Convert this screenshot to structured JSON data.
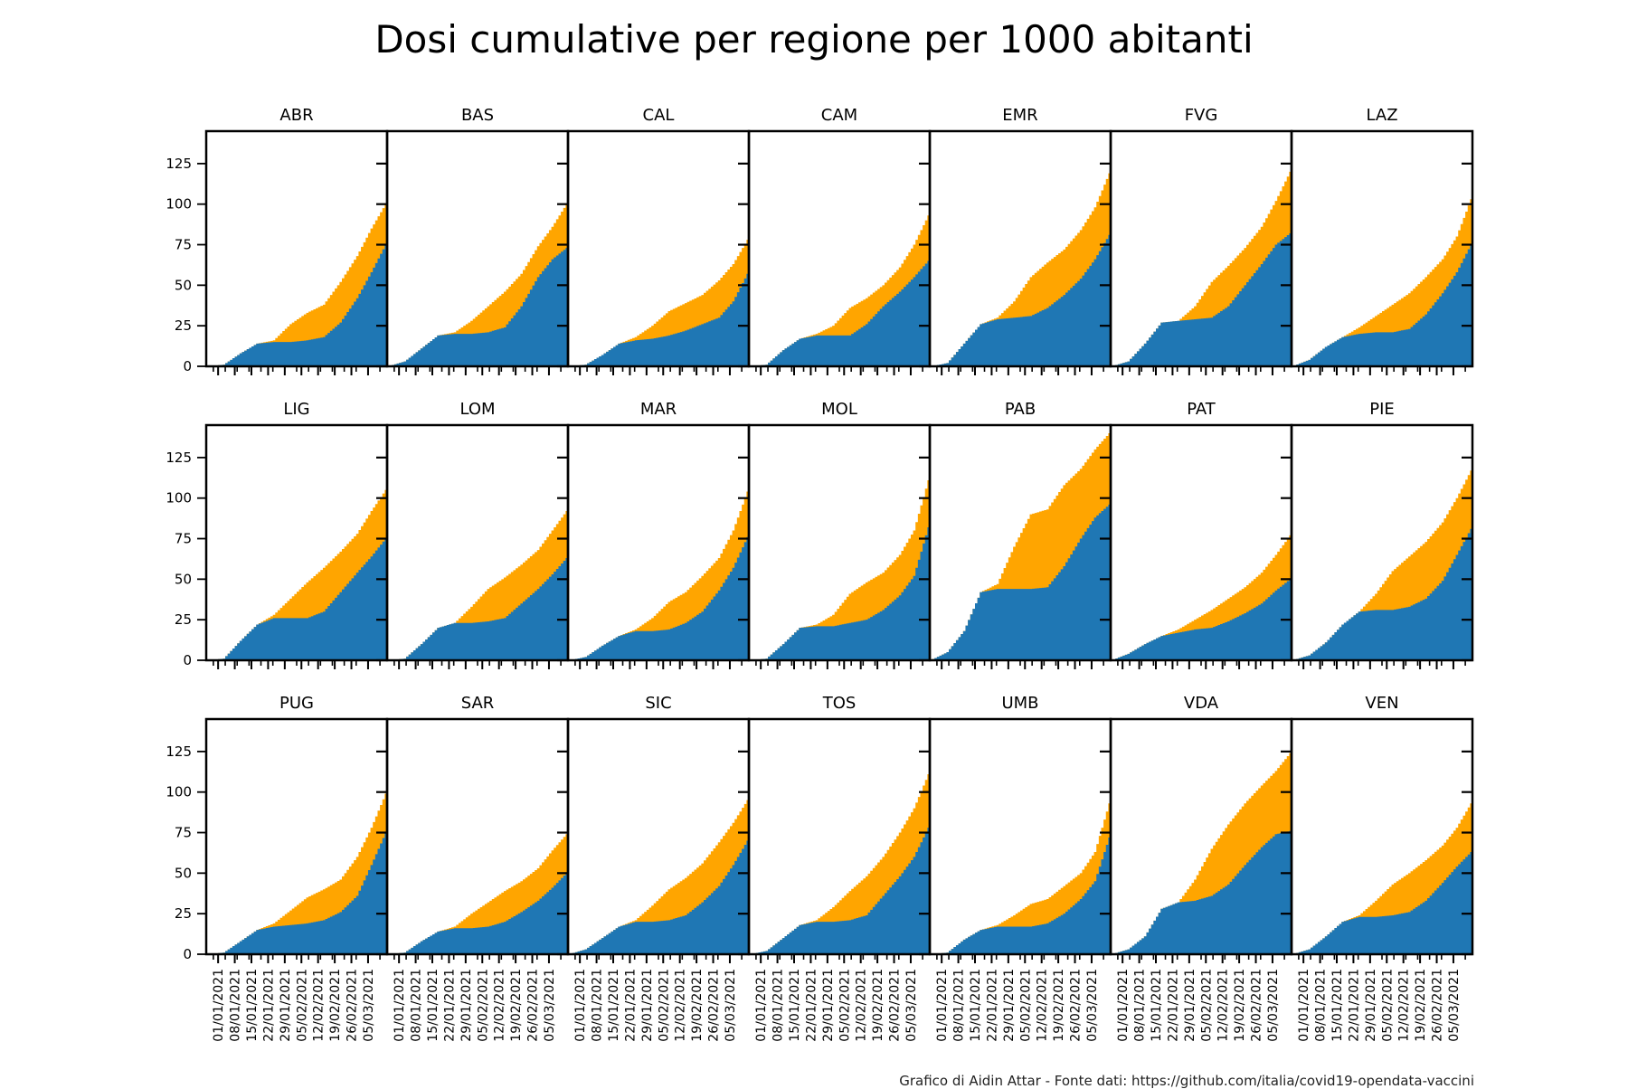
{
  "title": "Dosi cumulative per regione per 1000 abitanti",
  "caption": "Grafico di Aidin Attar - Fonte dati: https://github.com/italia/covid19-opendata-vaccini",
  "colors": {
    "total": "#ffa500",
    "first": "#1f77b4"
  },
  "chart_data": {
    "type": "area",
    "layout": {
      "rows": 3,
      "cols": 7,
      "shared_axes": true,
      "step": true
    },
    "y_ticks": [
      0,
      25,
      50,
      75,
      100,
      125
    ],
    "ylim": [
      0,
      145
    ],
    "x_ticks": [
      "01/01/2021",
      "08/01/2021",
      "15/01/2021",
      "22/01/2021",
      "29/01/2021",
      "05/02/2021",
      "12/02/2021",
      "19/02/2021",
      "26/02/2021",
      "05/03/2021"
    ],
    "x_range": [
      "2020-12-27",
      "2021-03-13"
    ],
    "series_keys": [
      "total",
      "first"
    ],
    "knot_dates": [
      "2020-12-27",
      "2021-01-03",
      "2021-01-10",
      "2021-01-17",
      "2021-01-24",
      "2021-01-31",
      "2021-02-07",
      "2021-02-14",
      "2021-02-21",
      "2021-02-28",
      "2021-03-06",
      "2021-03-12"
    ],
    "panels": [
      {
        "label": "ABR",
        "total": [
          0,
          1,
          8,
          14,
          16,
          26,
          33,
          38,
          52,
          68,
          85,
          100
        ],
        "first": [
          0,
          1,
          8,
          14,
          15,
          15,
          16,
          18,
          27,
          42,
          58,
          75
        ]
      },
      {
        "label": "BAS",
        "total": [
          0,
          3,
          11,
          19,
          21,
          28,
          37,
          46,
          57,
          74,
          86,
          100
        ],
        "first": [
          0,
          3,
          11,
          19,
          20,
          20,
          21,
          24,
          37,
          55,
          66,
          73
        ]
      },
      {
        "label": "CAL",
        "total": [
          0,
          1,
          7,
          14,
          18,
          25,
          34,
          39,
          44,
          53,
          63,
          78
        ],
        "first": [
          0,
          1,
          7,
          14,
          16,
          17,
          19,
          22,
          26,
          30,
          40,
          57
        ]
      },
      {
        "label": "CAM",
        "total": [
          0,
          1,
          10,
          17,
          20,
          25,
          36,
          42,
          50,
          61,
          75,
          93
        ],
        "first": [
          0,
          1,
          10,
          17,
          19,
          19,
          19,
          26,
          37,
          46,
          55,
          65
        ]
      },
      {
        "label": "EMR",
        "total": [
          0,
          2,
          14,
          26,
          30,
          40,
          55,
          64,
          72,
          84,
          98,
          119
        ],
        "first": [
          0,
          2,
          14,
          26,
          29,
          30,
          31,
          36,
          44,
          54,
          66,
          81
        ]
      },
      {
        "label": "FVG",
        "total": [
          0,
          3,
          14,
          27,
          28,
          37,
          52,
          62,
          73,
          86,
          102,
          120
        ],
        "first": [
          0,
          3,
          14,
          27,
          28,
          29,
          30,
          37,
          50,
          63,
          75,
          82
        ]
      },
      {
        "label": "LAZ",
        "total": [
          0,
          4,
          12,
          18,
          24,
          31,
          38,
          45,
          55,
          66,
          80,
          103
        ],
        "first": [
          0,
          4,
          12,
          18,
          20,
          21,
          21,
          23,
          32,
          45,
          58,
          75
        ]
      },
      {
        "label": "LIG",
        "total": [
          0,
          1,
          12,
          22,
          28,
          38,
          48,
          57,
          67,
          78,
          92,
          105
        ],
        "first": [
          0,
          1,
          12,
          22,
          26,
          26,
          26,
          30,
          42,
          54,
          64,
          75
        ]
      },
      {
        "label": "LOM",
        "total": [
          0,
          1,
          10,
          20,
          23,
          33,
          44,
          51,
          59,
          68,
          80,
          92
        ],
        "first": [
          0,
          1,
          10,
          20,
          23,
          23,
          24,
          26,
          35,
          44,
          53,
          63
        ]
      },
      {
        "label": "MAR",
        "total": [
          0,
          2,
          9,
          15,
          19,
          26,
          36,
          42,
          52,
          63,
          80,
          104
        ],
        "first": [
          0,
          2,
          9,
          15,
          18,
          18,
          19,
          23,
          30,
          43,
          57,
          76
        ]
      },
      {
        "label": "MOL",
        "total": [
          0,
          1,
          10,
          20,
          22,
          28,
          41,
          48,
          54,
          65,
          80,
          111
        ],
        "first": [
          0,
          1,
          10,
          20,
          21,
          21,
          23,
          25,
          31,
          40,
          52,
          82
        ]
      },
      {
        "label": "PAB",
        "total": [
          0,
          5,
          18,
          42,
          47,
          70,
          90,
          93,
          108,
          118,
          130,
          140
        ],
        "first": [
          0,
          5,
          18,
          42,
          44,
          44,
          44,
          45,
          58,
          75,
          88,
          96
        ]
      },
      {
        "label": "PAT",
        "total": [
          0,
          4,
          10,
          15,
          19,
          25,
          31,
          38,
          45,
          54,
          65,
          77
        ],
        "first": [
          0,
          4,
          10,
          15,
          17,
          19,
          20,
          24,
          29,
          35,
          43,
          50
        ]
      },
      {
        "label": "PIE",
        "total": [
          0,
          3,
          11,
          22,
          30,
          41,
          55,
          64,
          73,
          85,
          100,
          117
        ],
        "first": [
          0,
          3,
          11,
          22,
          30,
          31,
          31,
          33,
          38,
          49,
          65,
          81
        ]
      },
      {
        "label": "PUG",
        "total": [
          0,
          1,
          8,
          15,
          19,
          27,
          35,
          40,
          46,
          60,
          78,
          99
        ],
        "first": [
          0,
          1,
          8,
          15,
          17,
          18,
          19,
          21,
          26,
          36,
          55,
          75
        ]
      },
      {
        "label": "SAR",
        "total": [
          0,
          1,
          8,
          14,
          17,
          25,
          32,
          39,
          45,
          53,
          64,
          74
        ],
        "first": [
          0,
          1,
          8,
          14,
          16,
          16,
          17,
          20,
          26,
          33,
          41,
          50
        ]
      },
      {
        "label": "SIC",
        "total": [
          0,
          3,
          10,
          17,
          21,
          30,
          40,
          47,
          56,
          69,
          81,
          95
        ],
        "first": [
          0,
          3,
          10,
          17,
          20,
          20,
          21,
          24,
          32,
          42,
          55,
          70
        ]
      },
      {
        "label": "TOS",
        "total": [
          0,
          2,
          10,
          18,
          21,
          29,
          39,
          48,
          60,
          75,
          90,
          111
        ],
        "first": [
          0,
          2,
          10,
          18,
          20,
          20,
          21,
          24,
          36,
          48,
          60,
          78
        ]
      },
      {
        "label": "UMB",
        "total": [
          0,
          1,
          9,
          15,
          18,
          24,
          31,
          34,
          42,
          50,
          63,
          93
        ],
        "first": [
          0,
          1,
          9,
          15,
          17,
          17,
          17,
          19,
          25,
          34,
          45,
          72
        ]
      },
      {
        "label": "VDA",
        "total": [
          0,
          3,
          11,
          28,
          32,
          46,
          65,
          80,
          93,
          104,
          113,
          124
        ],
        "first": [
          0,
          3,
          11,
          28,
          32,
          33,
          36,
          43,
          55,
          66,
          74,
          76
        ]
      },
      {
        "label": "VEN",
        "total": [
          0,
          3,
          11,
          20,
          24,
          33,
          43,
          50,
          58,
          67,
          78,
          93
        ],
        "first": [
          0,
          3,
          11,
          20,
          23,
          23,
          24,
          26,
          33,
          44,
          54,
          63
        ]
      }
    ]
  }
}
